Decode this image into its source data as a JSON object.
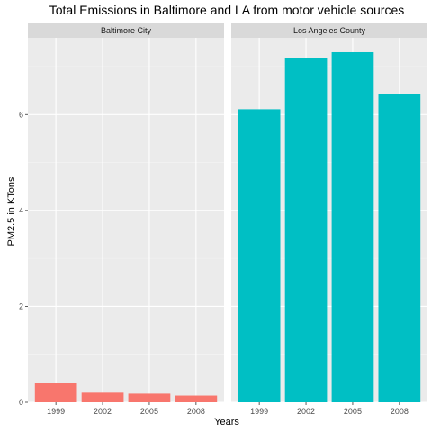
{
  "chart_data": {
    "type": "bar",
    "title": "Total Emissions in Baltimore and LA from motor vehicle sources",
    "xlabel": "Years",
    "ylabel": "PM2.5 in KTons",
    "ylim": [
      0,
      7.6
    ],
    "yticks": [
      0,
      2,
      4,
      6
    ],
    "categories": [
      "1999",
      "2002",
      "2005",
      "2008"
    ],
    "grid": true,
    "panels": [
      {
        "name": "Baltimore City",
        "color": "#F8766D",
        "values": [
          0.4,
          0.2,
          0.18,
          0.14
        ]
      },
      {
        "name": "Los Angeles County",
        "color": "#00BFC4",
        "values": [
          6.11,
          7.17,
          7.3,
          6.42
        ]
      }
    ]
  }
}
